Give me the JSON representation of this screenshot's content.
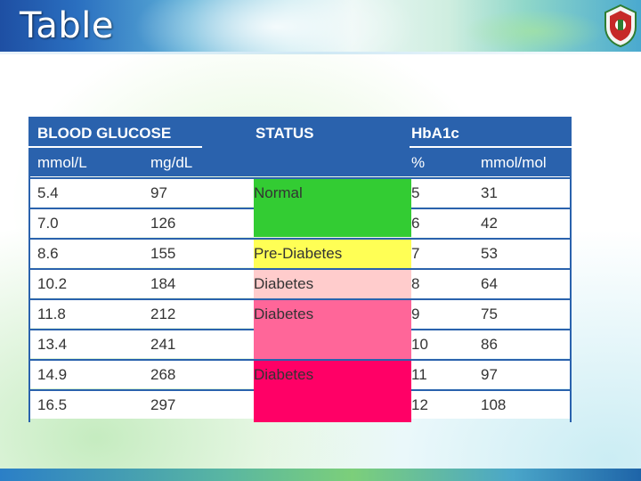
{
  "slide": {
    "title": "Table"
  },
  "table": {
    "group_headers": {
      "blood_glucose": "BLOOD GLUCOSE",
      "status": "STATUS",
      "hba1c": "HbA1c"
    },
    "sub_headers": {
      "mmol_l": "mmol/L",
      "mg_dl": "mg/dL",
      "percent": "%",
      "mmol_mol": "mmol/mol"
    },
    "rows": [
      {
        "mmol_l": "5.4",
        "mg_dl": "97",
        "percent": "5",
        "mmol_mol": "31"
      },
      {
        "mmol_l": "7.0",
        "mg_dl": "126",
        "percent": "6",
        "mmol_mol": "42"
      },
      {
        "mmol_l": "8.6",
        "mg_dl": "155",
        "percent": "7",
        "mmol_mol": "53"
      },
      {
        "mmol_l": "10.2",
        "mg_dl": "184",
        "percent": "8",
        "mmol_mol": "64"
      },
      {
        "mmol_l": "11.8",
        "mg_dl": "212",
        "percent": "9",
        "mmol_mol": "75"
      },
      {
        "mmol_l": "13.4",
        "mg_dl": "241",
        "percent": "10",
        "mmol_mol": "86"
      },
      {
        "mmol_l": "14.9",
        "mg_dl": "268",
        "percent": "11",
        "mmol_mol": "97"
      },
      {
        "mmol_l": "16.5",
        "mg_dl": "297",
        "percent": "12",
        "mmol_mol": "108"
      }
    ],
    "status_labels": {
      "normal": "Normal",
      "pre_diabetes": "Pre-Diabetes",
      "diabetes_1": "Diabetes",
      "diabetes_2": "Diabetes",
      "diabetes_3": "Diabetes"
    },
    "colors": {
      "header_bg": "#2a62ad",
      "normal": "#33cc33",
      "pre_diabetes": "#ffff55",
      "diabetes_light": "#ffcccc",
      "diabetes_mid": "#ff6699",
      "diabetes_dark": "#ff0066"
    }
  },
  "icons": {
    "logo": "university-crest-icon"
  }
}
